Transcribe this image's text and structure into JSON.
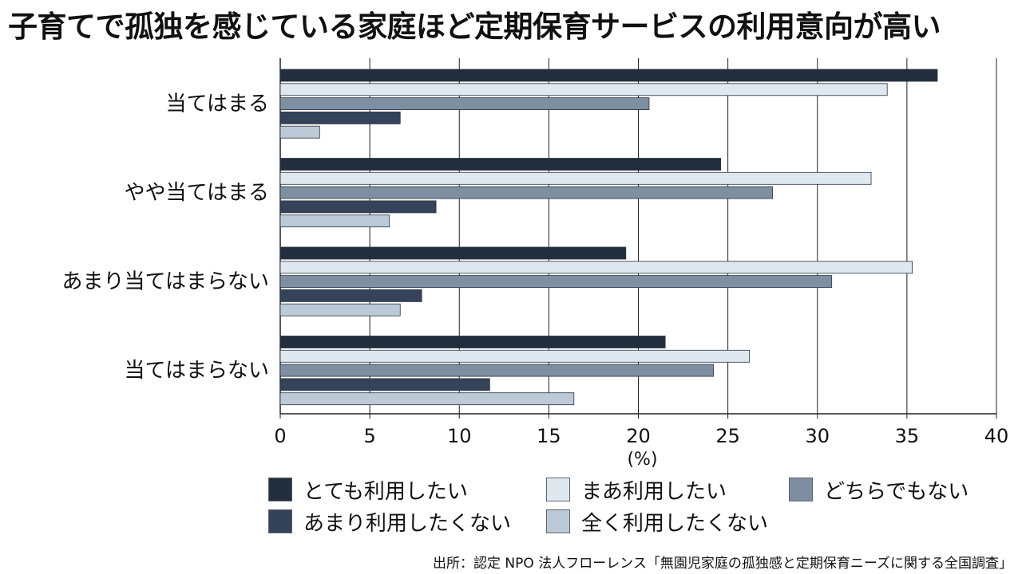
{
  "title": "子育てで孤独を感じている家庭ほど定期保育サービスの利用意向が高い",
  "source": "出所：認定 NPO 法人フローレンス「無園児家庭の孤独感と定期保育ニーズに関する全国調査」",
  "colors": {
    "series": [
      "#222d3d",
      "#dfe7ef",
      "#7e8fa2",
      "#34435a",
      "#bccad7"
    ],
    "grid": "#222222",
    "bar_border": "#2b3440"
  },
  "chart_data": {
    "type": "bar",
    "orientation": "horizontal",
    "categories": [
      "当てはまる",
      "やや当てはまる",
      "あまり当てはまらない",
      "当てはまらない"
    ],
    "series": [
      {
        "name": "とても利用したい",
        "values": [
          36.7,
          24.6,
          19.3,
          21.5
        ]
      },
      {
        "name": "まあ利用したい",
        "values": [
          33.9,
          33.0,
          35.3,
          26.2
        ]
      },
      {
        "name": "どちらでもない",
        "values": [
          20.6,
          27.5,
          30.8,
          24.2
        ]
      },
      {
        "name": "あまり利用したくない",
        "values": [
          6.7,
          8.7,
          7.9,
          11.7
        ]
      },
      {
        "name": "全く利用したくない",
        "values": [
          2.2,
          6.1,
          6.7,
          16.4
        ]
      }
    ],
    "xlim": [
      0,
      40
    ],
    "xticks": [
      "0",
      "5",
      "10",
      "15",
      "20",
      "25",
      "30",
      "35",
      "40"
    ],
    "xlabel": "(%)",
    "grid": true,
    "legend_position": "bottom"
  }
}
